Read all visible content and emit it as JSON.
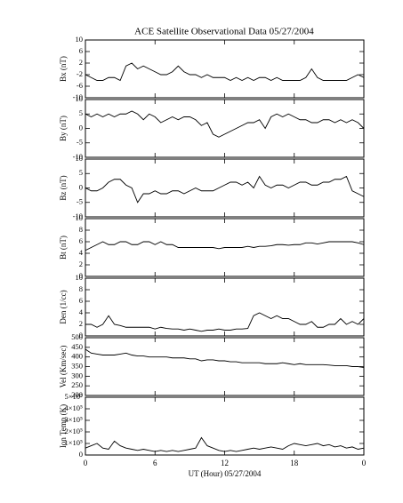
{
  "chart_data": [
    {
      "type": "line",
      "title": "ACE Satellite Observational Data   05/27/2004",
      "y_label": "Bx (nT)",
      "color": "#000000",
      "x": [
        0,
        0.5,
        1,
        1.5,
        2,
        2.5,
        3,
        3.5,
        4,
        4.5,
        5,
        5.5,
        6,
        6.5,
        7,
        7.5,
        8,
        8.5,
        9,
        9.5,
        10,
        10.5,
        11,
        11.5,
        12,
        12.5,
        13,
        13.5,
        14,
        14.5,
        15,
        15.5,
        16,
        16.5,
        17,
        17.5,
        18,
        18.5,
        19,
        19.5,
        20,
        20.5,
        21,
        21.5,
        22,
        22.5,
        23,
        23.5,
        24
      ],
      "values": [
        -2,
        -3,
        -4,
        -4,
        -3,
        -3,
        -4,
        1,
        2,
        0,
        1,
        0,
        -1,
        -2,
        -2,
        -1,
        1,
        -1,
        -2,
        -2,
        -3,
        -2,
        -3,
        -3,
        -3,
        -4,
        -3,
        -4,
        -3,
        -4,
        -3,
        -3,
        -4,
        -3,
        -4,
        -4,
        -4,
        -4,
        -3,
        0,
        -3,
        -4,
        -4,
        -4,
        -4,
        -4,
        -3,
        -2,
        -3
      ],
      "xlim": [
        0,
        24
      ],
      "ylim": [
        -10,
        10
      ],
      "yticks": [
        -10,
        -6,
        -2,
        2,
        6,
        10
      ]
    },
    {
      "type": "line",
      "y_label": "By (nT)",
      "color": "#000000",
      "x": [
        0,
        0.5,
        1,
        1.5,
        2,
        2.5,
        3,
        3.5,
        4,
        4.5,
        5,
        5.5,
        6,
        6.5,
        7,
        7.5,
        8,
        8.5,
        9,
        9.5,
        10,
        10.5,
        11,
        11.5,
        12,
        12.5,
        13,
        13.5,
        14,
        14.5,
        15,
        15.5,
        16,
        16.5,
        17,
        17.5,
        18,
        18.5,
        19,
        19.5,
        20,
        20.5,
        21,
        21.5,
        22,
        22.5,
        23,
        23.5,
        24
      ],
      "values": [
        5,
        4,
        5,
        4,
        5,
        4,
        5,
        5,
        6,
        5,
        3,
        5,
        4,
        2,
        3,
        4,
        3,
        4,
        4,
        3,
        1,
        2,
        -2,
        -3,
        -2,
        -1,
        0,
        1,
        2,
        2,
        3,
        0,
        4,
        5,
        4,
        5,
        4,
        3,
        3,
        2,
        2,
        3,
        3,
        2,
        3,
        2,
        3,
        2,
        0
      ],
      "xlim": [
        0,
        24
      ],
      "ylim": [
        -10,
        10
      ],
      "yticks": [
        -10,
        -5,
        0,
        5,
        10
      ]
    },
    {
      "type": "line",
      "y_label": "Bz (nT)",
      "color": "#000000",
      "x": [
        0,
        0.5,
        1,
        1.5,
        2,
        2.5,
        3,
        3.5,
        4,
        4.5,
        5,
        5.5,
        6,
        6.5,
        7,
        7.5,
        8,
        8.5,
        9,
        9.5,
        10,
        10.5,
        11,
        11.5,
        12,
        12.5,
        13,
        13.5,
        14,
        14.5,
        15,
        15.5,
        16,
        16.5,
        17,
        17.5,
        18,
        18.5,
        19,
        19.5,
        20,
        20.5,
        21,
        21.5,
        22,
        22.5,
        23,
        23.5,
        24
      ],
      "values": [
        0,
        -1,
        -1,
        0,
        2,
        3,
        3,
        1,
        0,
        -5,
        -2,
        -2,
        -1,
        -2,
        -2,
        -1,
        -1,
        -2,
        -1,
        0,
        -1,
        -1,
        -1,
        0,
        1,
        2,
        2,
        1,
        2,
        0,
        4,
        1,
        0,
        1,
        1,
        0,
        1,
        2,
        2,
        1,
        1,
        2,
        2,
        3,
        3,
        4,
        -1,
        -2,
        -3
      ],
      "xlim": [
        0,
        24
      ],
      "ylim": [
        -10,
        10
      ],
      "yticks": [
        -10,
        -5,
        0,
        5,
        10
      ]
    },
    {
      "type": "line",
      "y_label": "Bt (nT)",
      "color": "#000000",
      "x": [
        0,
        0.5,
        1,
        1.5,
        2,
        2.5,
        3,
        3.5,
        4,
        4.5,
        5,
        5.5,
        6,
        6.5,
        7,
        7.5,
        8,
        8.5,
        9,
        9.5,
        10,
        10.5,
        11,
        11.5,
        12,
        12.5,
        13,
        13.5,
        14,
        14.5,
        15,
        15.5,
        16,
        16.5,
        17,
        17.5,
        18,
        18.5,
        19,
        19.5,
        20,
        20.5,
        21,
        21.5,
        22,
        22.5,
        23,
        23.5,
        24
      ],
      "values": [
        4.5,
        5,
        5.5,
        6,
        5.5,
        5.5,
        6,
        6,
        5.5,
        5.5,
        6,
        6,
        5.5,
        6,
        5.5,
        5.5,
        5,
        5,
        5,
        5,
        5,
        5,
        5,
        4.8,
        5,
        5,
        5,
        5,
        5.2,
        5,
        5.2,
        5.2,
        5.3,
        5.5,
        5.5,
        5.4,
        5.5,
        5.5,
        5.8,
        5.8,
        5.6,
        5.8,
        6,
        6,
        6,
        6,
        6,
        5.8,
        5.5
      ],
      "xlim": [
        0,
        24
      ],
      "ylim": [
        0,
        10
      ],
      "yticks": [
        0,
        2,
        4,
        6,
        8,
        10
      ]
    },
    {
      "type": "line",
      "y_label": "Den (1/cc)",
      "color": "#000000",
      "x": [
        0,
        0.5,
        1,
        1.5,
        2,
        2.5,
        3,
        3.5,
        4,
        4.5,
        5,
        5.5,
        6,
        6.5,
        7,
        7.5,
        8,
        8.5,
        9,
        9.5,
        10,
        10.5,
        11,
        11.5,
        12,
        12.5,
        13,
        13.5,
        14,
        14.5,
        15,
        15.5,
        16,
        16.5,
        17,
        17.5,
        18,
        18.5,
        19,
        19.5,
        20,
        20.5,
        21,
        21.5,
        22,
        22.5,
        23,
        23.5,
        24
      ],
      "values": [
        2,
        2,
        1.5,
        2,
        3.5,
        2,
        1.8,
        1.5,
        1.5,
        1.5,
        1.5,
        1.5,
        1.2,
        1.5,
        1.3,
        1.2,
        1.2,
        1,
        1.2,
        1,
        0.8,
        1,
        1,
        1.2,
        1,
        1,
        1.2,
        1.2,
        1.3,
        3.5,
        4,
        3.5,
        3,
        3.5,
        3,
        3,
        2.5,
        2,
        2,
        2.5,
        1.5,
        1.5,
        2,
        2,
        3,
        2,
        2.5,
        2,
        3
      ],
      "xlim": [
        0,
        24
      ],
      "ylim": [
        0,
        10
      ],
      "yticks": [
        0,
        2,
        4,
        6,
        8,
        10
      ]
    },
    {
      "type": "line",
      "y_label": "Vel (Km/sec)",
      "color": "#000000",
      "x": [
        0,
        0.5,
        1,
        1.5,
        2,
        2.5,
        3,
        3.5,
        4,
        4.5,
        5,
        5.5,
        6,
        6.5,
        7,
        7.5,
        8,
        8.5,
        9,
        9.5,
        10,
        10.5,
        11,
        11.5,
        12,
        12.5,
        13,
        13.5,
        14,
        14.5,
        15,
        15.5,
        16,
        16.5,
        17,
        17.5,
        18,
        18.5,
        19,
        19.5,
        20,
        20.5,
        21,
        21.5,
        22,
        22.5,
        23,
        23.5,
        24
      ],
      "values": [
        440,
        420,
        415,
        410,
        410,
        410,
        415,
        420,
        410,
        405,
        405,
        400,
        400,
        400,
        400,
        395,
        395,
        395,
        390,
        390,
        380,
        385,
        385,
        380,
        380,
        375,
        375,
        370,
        370,
        370,
        370,
        365,
        365,
        365,
        370,
        365,
        360,
        365,
        360,
        360,
        360,
        360,
        358,
        355,
        355,
        355,
        350,
        350,
        345
      ],
      "xlim": [
        0,
        24
      ],
      "ylim": [
        200,
        500
      ],
      "yticks": [
        200,
        250,
        300,
        350,
        400,
        450,
        500
      ]
    },
    {
      "type": "line",
      "y_label": "Ion Temp (K)",
      "x_label": "UT (Hour)  05/27/2004",
      "color": "#000000",
      "x": [
        0,
        0.5,
        1,
        1.5,
        2,
        2.5,
        3,
        3.5,
        4,
        4.5,
        5,
        5.5,
        6,
        6.5,
        7,
        7.5,
        8,
        8.5,
        9,
        9.5,
        10,
        10.5,
        11,
        11.5,
        12,
        12.5,
        13,
        13.5,
        14,
        14.5,
        15,
        15.5,
        16,
        16.5,
        17,
        17.5,
        18,
        18.5,
        19,
        19.5,
        20,
        20.5,
        21,
        21.5,
        22,
        22.5,
        23,
        23.5,
        24
      ],
      "values": [
        60000,
        80000,
        100000,
        60000,
        50000,
        120000,
        80000,
        60000,
        50000,
        40000,
        50000,
        40000,
        30000,
        40000,
        30000,
        40000,
        30000,
        40000,
        50000,
        60000,
        150000,
        80000,
        60000,
        40000,
        30000,
        40000,
        30000,
        40000,
        50000,
        60000,
        50000,
        60000,
        70000,
        60000,
        50000,
        80000,
        100000,
        90000,
        80000,
        90000,
        100000,
        80000,
        90000,
        70000,
        80000,
        60000,
        70000,
        50000,
        60000
      ],
      "xlim": [
        0,
        24
      ],
      "xticks": [
        0,
        6,
        12,
        18,
        {
          "value": 24,
          "label": "0"
        }
      ],
      "ylim": [
        0,
        500000
      ],
      "yticks": [
        0,
        {
          "value": 100000,
          "label": "1×10⁵"
        },
        {
          "value": 200000,
          "label": "2×10⁵"
        },
        {
          "value": 300000,
          "label": "3×10⁵"
        },
        {
          "value": 400000,
          "label": "4×10⁵"
        },
        {
          "value": 500000,
          "label": "5×10⁵"
        }
      ]
    }
  ]
}
